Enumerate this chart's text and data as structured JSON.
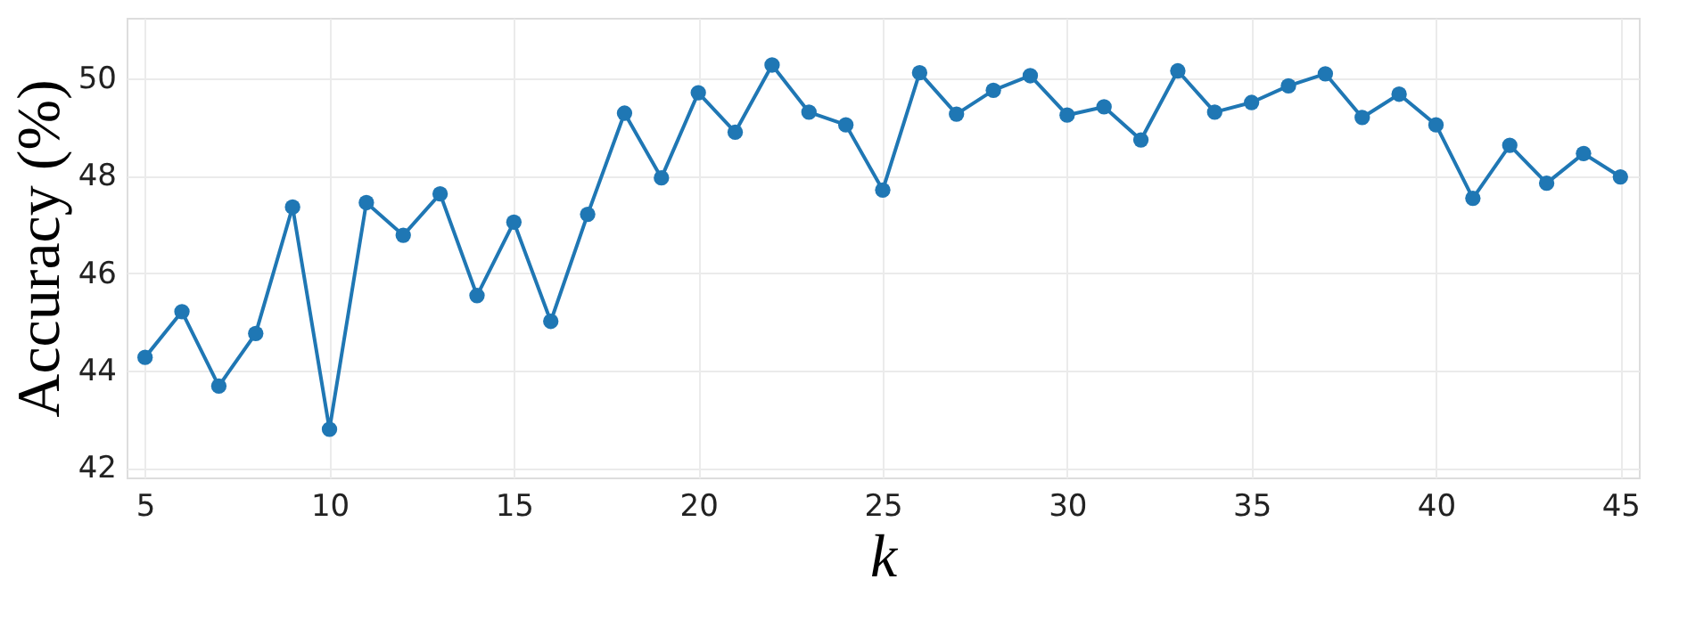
{
  "chart_data": {
    "type": "line",
    "xlabel": "k",
    "ylabel": "Accuracy (%)",
    "x": [
      5,
      6,
      7,
      8,
      9,
      10,
      11,
      12,
      13,
      14,
      15,
      16,
      17,
      18,
      19,
      20,
      21,
      22,
      23,
      24,
      25,
      26,
      27,
      28,
      29,
      30,
      31,
      32,
      33,
      34,
      35,
      36,
      37,
      38,
      39,
      40,
      41,
      42,
      43,
      44,
      45
    ],
    "series": [
      {
        "color": "#1f77b4",
        "values": [
          44.27,
          45.21,
          43.68,
          44.76,
          47.36,
          42.79,
          47.45,
          46.78,
          47.63,
          45.54,
          47.05,
          45.01,
          47.21,
          49.29,
          47.96,
          49.71,
          48.9,
          50.28,
          49.31,
          49.05,
          47.71,
          50.12,
          49.27,
          49.76,
          50.06,
          49.25,
          49.42,
          48.74,
          50.16,
          49.31,
          49.51,
          49.85,
          50.1,
          49.2,
          49.68,
          49.05,
          47.54,
          48.63,
          47.85,
          48.46,
          47.98
        ]
      }
    ],
    "xlim": [
      4.5,
      45.5
    ],
    "ylim": [
      41.8,
      51.25
    ],
    "xticks": [
      5,
      10,
      15,
      20,
      25,
      30,
      35,
      40,
      45
    ],
    "yticks": [
      42,
      44,
      46,
      48,
      50
    ],
    "grid": true,
    "marker": "circle",
    "line_style": "solid"
  }
}
